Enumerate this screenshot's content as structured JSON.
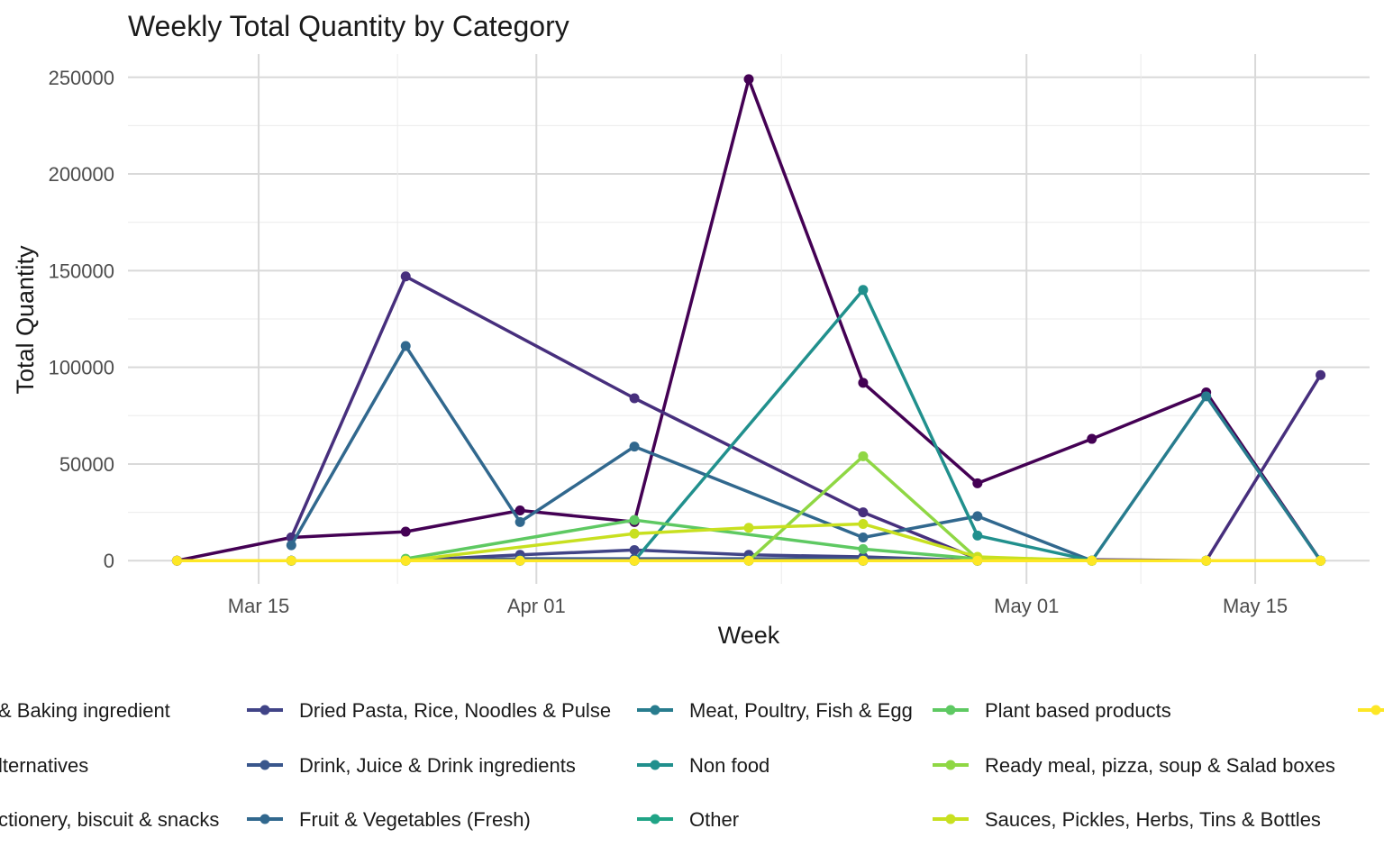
{
  "chart_data": {
    "type": "line",
    "title": "Weekly Total Quantity by Category",
    "xlabel": "Week",
    "ylabel": "Total Quantity",
    "x_ticks": [
      "Mar 15",
      "Apr 01",
      "May 01",
      "May 15"
    ],
    "y_ticks": [
      "0",
      "50000",
      "100000",
      "150000",
      "200000",
      "250000"
    ],
    "ylim": [
      -12000,
      262000
    ],
    "xlim": [
      "2025-03-07",
      "2025-05-22"
    ],
    "grid": true,
    "legend_position": "bottom",
    "series": [
      {
        "name": "& Baking ingredient",
        "color": "#440154",
        "points": [
          [
            "2025-03-10",
            0
          ],
          [
            "2025-03-17",
            12000
          ],
          [
            "2025-03-24",
            15000
          ],
          [
            "2025-03-31",
            26000
          ],
          [
            "2025-04-07",
            20000
          ],
          [
            "2025-04-14",
            249000
          ],
          [
            "2025-04-21",
            92000
          ],
          [
            "2025-04-28",
            40000
          ],
          [
            "2025-05-05",
            63000
          ],
          [
            "2025-05-12",
            87000
          ],
          [
            "2025-05-19",
            0
          ]
        ]
      },
      {
        "name": "lternatives",
        "color": "#481a6c",
        "points": [
          [
            "2025-03-10",
            0
          ],
          [
            "2025-03-17",
            0
          ],
          [
            "2025-03-24",
            0
          ],
          [
            "2025-03-31",
            0
          ],
          [
            "2025-04-07",
            0
          ],
          [
            "2025-04-14",
            0
          ],
          [
            "2025-04-21",
            0
          ],
          [
            "2025-04-28",
            0
          ],
          [
            "2025-05-05",
            0
          ],
          [
            "2025-05-12",
            0
          ],
          [
            "2025-05-19",
            0
          ]
        ]
      },
      {
        "name": "ctionery, biscuit & snacks",
        "color": "#472f7d",
        "points": [
          [
            "2025-03-17",
            12000
          ],
          [
            "2025-03-24",
            147000
          ],
          [
            "2025-04-07",
            84000
          ],
          [
            "2025-04-21",
            25000
          ],
          [
            "2025-04-28",
            1000
          ],
          [
            "2025-05-12",
            0
          ],
          [
            "2025-05-19",
            96000
          ]
        ]
      },
      {
        "name": "Dried Pasta, Rice, Noodles & Pulse",
        "color": "#414487",
        "points": [
          [
            "2025-03-10",
            0
          ],
          [
            "2025-03-17",
            0
          ],
          [
            "2025-03-24",
            0
          ],
          [
            "2025-03-31",
            3000
          ],
          [
            "2025-04-07",
            5500
          ],
          [
            "2025-04-14",
            3000
          ],
          [
            "2025-04-21",
            2000
          ],
          [
            "2025-04-28",
            0
          ],
          [
            "2025-05-05",
            0
          ],
          [
            "2025-05-12",
            0
          ],
          [
            "2025-05-19",
            0
          ]
        ]
      },
      {
        "name": "Drink, Juice & Drink ingredients",
        "color": "#39568c",
        "points": [
          [
            "2025-03-17",
            0
          ],
          [
            "2025-03-24",
            0
          ],
          [
            "2025-03-31",
            1000
          ],
          [
            "2025-04-07",
            1000
          ],
          [
            "2025-04-14",
            1000
          ],
          [
            "2025-04-21",
            1000
          ],
          [
            "2025-04-28",
            0
          ],
          [
            "2025-05-05",
            0
          ],
          [
            "2025-05-12",
            0
          ],
          [
            "2025-05-19",
            0
          ]
        ]
      },
      {
        "name": "Fruit & Vegetables (Fresh)",
        "color": "#31688e",
        "points": [
          [
            "2025-03-17",
            8000
          ],
          [
            "2025-03-24",
            111000
          ],
          [
            "2025-03-31",
            20000
          ],
          [
            "2025-04-07",
            59000
          ],
          [
            "2025-04-21",
            12000
          ],
          [
            "2025-04-28",
            23000
          ],
          [
            "2025-05-05",
            0
          ],
          [
            "2025-05-12",
            0
          ],
          [
            "2025-05-19",
            0
          ]
        ]
      },
      {
        "name": "Meat, Poultry, Fish & Egg",
        "color": "#287c8e",
        "points": [
          [
            "2025-03-17",
            0
          ],
          [
            "2025-03-24",
            0
          ],
          [
            "2025-04-07",
            0
          ],
          [
            "2025-04-21",
            0
          ],
          [
            "2025-04-28",
            0
          ],
          [
            "2025-05-05",
            0
          ],
          [
            "2025-05-12",
            85000
          ],
          [
            "2025-05-19",
            0
          ]
        ]
      },
      {
        "name": "Non food",
        "color": "#21908d",
        "points": [
          [
            "2025-03-31",
            0
          ],
          [
            "2025-04-07",
            0
          ],
          [
            "2025-04-21",
            140000
          ],
          [
            "2025-04-28",
            13000
          ],
          [
            "2025-05-05",
            0
          ],
          [
            "2025-05-12",
            0
          ],
          [
            "2025-05-19",
            0
          ]
        ]
      },
      {
        "name": "Other",
        "color": "#20a486",
        "points": [
          [
            "2025-03-17",
            0
          ],
          [
            "2025-03-24",
            0
          ],
          [
            "2025-03-31",
            0
          ],
          [
            "2025-04-07",
            0
          ],
          [
            "2025-04-14",
            0
          ],
          [
            "2025-04-21",
            0
          ],
          [
            "2025-04-28",
            0
          ],
          [
            "2025-05-05",
            0
          ],
          [
            "2025-05-12",
            0
          ],
          [
            "2025-05-19",
            0
          ]
        ]
      },
      {
        "name": "Plant based products",
        "color": "#5ec962",
        "points": [
          [
            "2025-03-24",
            1000
          ],
          [
            "2025-04-07",
            21000
          ],
          [
            "2025-04-21",
            6000
          ],
          [
            "2025-04-28",
            1000
          ],
          [
            "2025-05-05",
            0
          ],
          [
            "2025-05-12",
            0
          ],
          [
            "2025-05-19",
            0
          ]
        ]
      },
      {
        "name": "Ready meal, pizza, soup & Salad boxes",
        "color": "#8fd744",
        "points": [
          [
            "2025-03-24",
            0
          ],
          [
            "2025-04-07",
            0
          ],
          [
            "2025-04-14",
            0
          ],
          [
            "2025-04-21",
            54000
          ],
          [
            "2025-04-28",
            1000
          ],
          [
            "2025-05-05",
            0
          ],
          [
            "2025-05-12",
            0
          ],
          [
            "2025-05-19",
            0
          ]
        ]
      },
      {
        "name": "Sauces, Pickles, Herbs, Tins & Bottles",
        "color": "#c8e020",
        "points": [
          [
            "2025-03-24",
            0
          ],
          [
            "2025-04-07",
            14000
          ],
          [
            "2025-04-14",
            17000
          ],
          [
            "2025-04-21",
            19000
          ],
          [
            "2025-04-28",
            2000
          ],
          [
            "2025-05-05",
            0
          ],
          [
            "2025-05-12",
            0
          ],
          [
            "2025-05-19",
            0
          ]
        ]
      },
      {
        "name": "",
        "color": "#fde725",
        "points": [
          [
            "2025-03-10",
            0
          ],
          [
            "2025-03-17",
            0
          ],
          [
            "2025-03-24",
            0
          ],
          [
            "2025-03-31",
            0
          ],
          [
            "2025-04-07",
            0
          ],
          [
            "2025-04-14",
            0
          ],
          [
            "2025-04-21",
            0
          ],
          [
            "2025-04-28",
            0
          ],
          [
            "2025-05-05",
            0
          ],
          [
            "2025-05-12",
            0
          ],
          [
            "2025-05-19",
            0
          ]
        ]
      }
    ]
  }
}
